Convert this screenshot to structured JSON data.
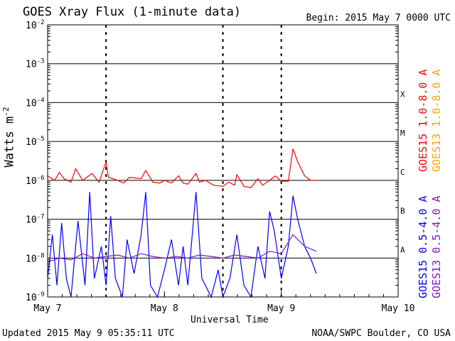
{
  "header": {
    "title": "GOES Xray Flux (1-minute data)",
    "begin": "Begin:  2015 May 7 0000 UTC"
  },
  "footer": {
    "updated": "Updated 2015 May  9 05:35:11 UTC",
    "credit": "NOAA/SWPC Boulder, CO USA"
  },
  "chart_data": {
    "type": "line",
    "title": "GOES Xray Flux (1-minute data)",
    "xlabel": "Universal Time",
    "ylabel": "Watts m",
    "ylabel_superscript": "-2",
    "y_scale": "log",
    "ylim": [
      1e-09,
      0.01
    ],
    "y_ticks": [
      {
        "exp": "-9",
        "value": 1e-09
      },
      {
        "exp": "-8",
        "value": 1e-08
      },
      {
        "exp": "-7",
        "value": 1e-07
      },
      {
        "exp": "-6",
        "value": 1e-06
      },
      {
        "exp": "-5",
        "value": 1e-05
      },
      {
        "exp": "-4",
        "value": 0.0001
      },
      {
        "exp": "-3",
        "value": 0.001
      },
      {
        "exp": "-2",
        "value": 0.01
      }
    ],
    "xlim_days": [
      0,
      3
    ],
    "x_ticks": [
      "May 7",
      "May 8",
      "May 9",
      "May 10"
    ],
    "x_tick_days": [
      0,
      1,
      2,
      3
    ],
    "grid": "horizontal at each decade",
    "flare_classes": [
      {
        "label": "A",
        "min": 1e-08
      },
      {
        "label": "B",
        "min": 1e-07
      },
      {
        "label": "C",
        "min": 1e-06
      },
      {
        "label": "M",
        "min": 1e-05
      },
      {
        "label": "X",
        "min": 0.0001
      }
    ],
    "day_marker_days": [
      0.5,
      1.5,
      2.0
    ],
    "series": [
      {
        "name": "GOES15 1.0-8.0 A",
        "color": "#ff0000",
        "points": [
          [
            0.0,
            1.3e-06
          ],
          [
            0.06,
            1e-06
          ],
          [
            0.1,
            1.6e-06
          ],
          [
            0.14,
            1.1e-06
          ],
          [
            0.2,
            9e-07
          ],
          [
            0.24,
            2e-06
          ],
          [
            0.3,
            1e-06
          ],
          [
            0.38,
            1.5e-06
          ],
          [
            0.44,
            9e-07
          ],
          [
            0.5,
            3e-06
          ],
          [
            0.52,
            1.2e-06
          ],
          [
            0.6,
            1e-06
          ],
          [
            0.65,
            8.5e-07
          ],
          [
            0.7,
            1.2e-06
          ],
          [
            0.8,
            1.1e-06
          ],
          [
            0.84,
            1.8e-06
          ],
          [
            0.9,
            9e-07
          ],
          [
            0.96,
            8.5e-07
          ],
          [
            1.0,
            1e-06
          ],
          [
            1.06,
            8.5e-07
          ],
          [
            1.12,
            1.3e-06
          ],
          [
            1.16,
            8.5e-07
          ],
          [
            1.2,
            8e-07
          ],
          [
            1.27,
            1.5e-06
          ],
          [
            1.3,
            9e-07
          ],
          [
            1.35,
            1e-06
          ],
          [
            1.42,
            7.5e-07
          ],
          [
            1.5,
            7e-07
          ],
          [
            1.55,
            9e-07
          ],
          [
            1.6,
            7.5e-07
          ],
          [
            1.62,
            1.4e-06
          ],
          [
            1.68,
            7e-07
          ],
          [
            1.74,
            6.5e-07
          ],
          [
            1.8,
            1.1e-06
          ],
          [
            1.84,
            7.5e-07
          ],
          [
            1.9,
            1e-06
          ],
          [
            1.95,
            1.3e-06
          ],
          [
            2.0,
            9.5e-07
          ],
          [
            2.06,
            9.5e-07
          ],
          [
            2.1,
            6.5e-06
          ],
          [
            2.14,
            3e-06
          ],
          [
            2.2,
            1.3e-06
          ],
          [
            2.25,
            1e-06
          ],
          [
            2.3,
            1e-06
          ]
        ]
      },
      {
        "name": "GOES13 1.0-8.0 A",
        "color": "#ffa500",
        "points": []
      },
      {
        "name": "GOES15 0.5-4.0 A",
        "color": "#0000ff",
        "points": [
          [
            0.0,
            3e-09
          ],
          [
            0.04,
            4e-08
          ],
          [
            0.08,
            2e-09
          ],
          [
            0.12,
            8e-08
          ],
          [
            0.16,
            3e-09
          ],
          [
            0.2,
            1e-09
          ],
          [
            0.26,
            9e-08
          ],
          [
            0.32,
            2e-09
          ],
          [
            0.36,
            5e-07
          ],
          [
            0.4,
            3e-09
          ],
          [
            0.46,
            2e-08
          ],
          [
            0.5,
            2e-09
          ],
          [
            0.54,
            1.2e-07
          ],
          [
            0.58,
            3e-09
          ],
          [
            0.64,
            1e-09
          ],
          [
            0.68,
            3e-08
          ],
          [
            0.74,
            4e-09
          ],
          [
            0.8,
            4e-08
          ],
          [
            0.84,
            5e-07
          ],
          [
            0.88,
            2e-09
          ],
          [
            0.94,
            1e-09
          ],
          [
            1.0,
            5e-09
          ],
          [
            1.06,
            3e-08
          ],
          [
            1.12,
            2e-09
          ],
          [
            1.16,
            2e-08
          ],
          [
            1.2,
            2e-09
          ],
          [
            1.27,
            5e-07
          ],
          [
            1.32,
            3e-09
          ],
          [
            1.4,
            1e-09
          ],
          [
            1.46,
            5e-09
          ],
          [
            1.5,
            1e-09
          ],
          [
            1.56,
            3e-09
          ],
          [
            1.62,
            4e-08
          ],
          [
            1.68,
            2e-09
          ],
          [
            1.74,
            1e-09
          ],
          [
            1.8,
            2e-08
          ],
          [
            1.86,
            3e-09
          ],
          [
            1.9,
            1.6e-07
          ],
          [
            1.94,
            5e-08
          ],
          [
            2.0,
            3e-09
          ],
          [
            2.06,
            2e-08
          ],
          [
            2.1,
            4e-07
          ],
          [
            2.14,
            1e-07
          ],
          [
            2.2,
            2e-08
          ],
          [
            2.25,
            1e-08
          ],
          [
            2.3,
            4e-09
          ]
        ]
      },
      {
        "name": "GOES13 0.5-4.0 A",
        "color": "#7b16c8",
        "points": [
          [
            0.0,
            8e-09
          ],
          [
            0.1,
            1e-08
          ],
          [
            0.2,
            9e-09
          ],
          [
            0.3,
            1.3e-08
          ],
          [
            0.4,
            1e-08
          ],
          [
            0.5,
            1.1e-08
          ],
          [
            0.6,
            1.2e-08
          ],
          [
            0.7,
            1e-08
          ],
          [
            0.8,
            1.3e-08
          ],
          [
            0.9,
            1.1e-08
          ],
          [
            1.0,
            1e-08
          ],
          [
            1.1,
            1.1e-08
          ],
          [
            1.2,
            1e-08
          ],
          [
            1.3,
            1.2e-08
          ],
          [
            1.4,
            1.1e-08
          ],
          [
            1.5,
            1e-08
          ],
          [
            1.6,
            1.2e-08
          ],
          [
            1.7,
            1.1e-08
          ],
          [
            1.8,
            1e-08
          ],
          [
            1.9,
            1.5e-08
          ],
          [
            2.0,
            1.3e-08
          ],
          [
            2.1,
            4e-08
          ],
          [
            2.2,
            2e-08
          ],
          [
            2.3,
            1.5e-08
          ]
        ]
      }
    ]
  }
}
